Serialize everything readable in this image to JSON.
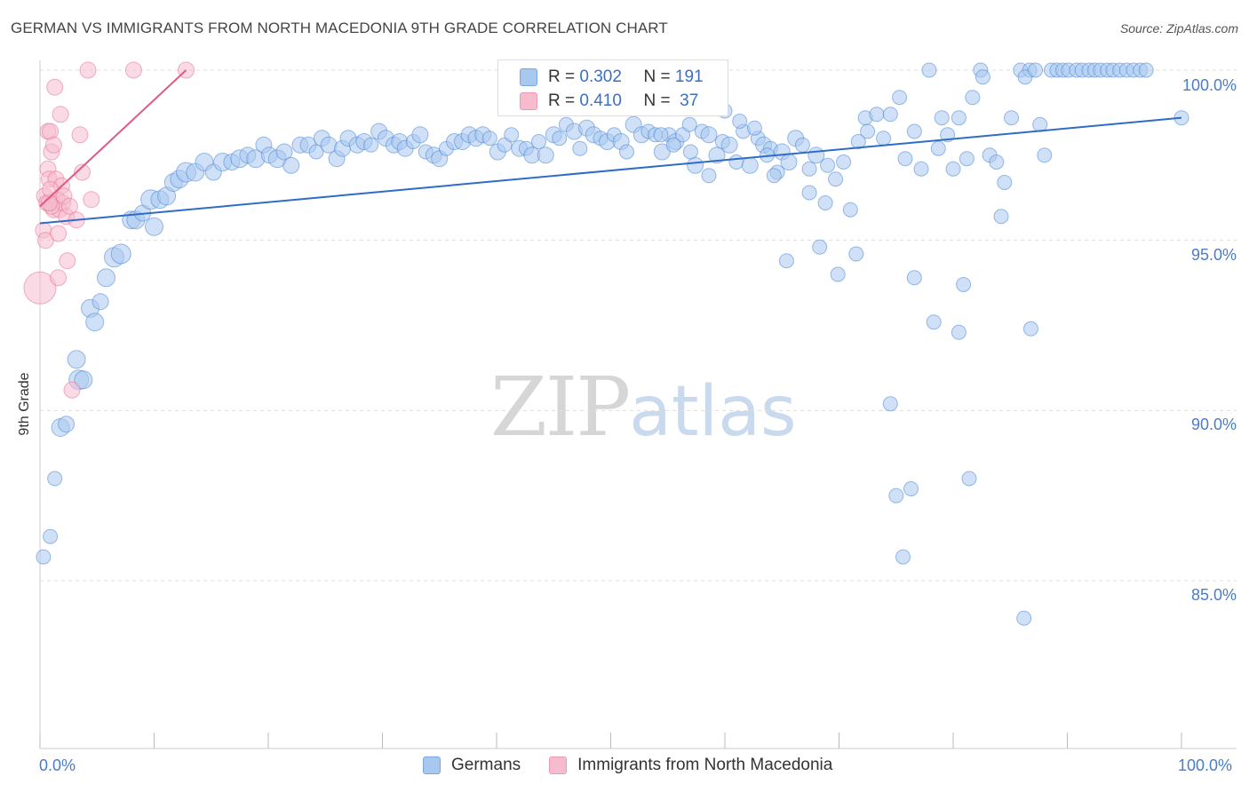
{
  "header": {
    "title": "GERMAN VS IMMIGRANTS FROM NORTH MACEDONIA 9TH GRADE CORRELATION CHART",
    "source": "Source: ZipAtlas.com"
  },
  "watermark": {
    "zip": "ZIP",
    "atlas": "atlas"
  },
  "legend_top": {
    "rows": [
      {
        "r_label": "R =",
        "r_value": "0.302",
        "n_label": "N =",
        "n_value": "191",
        "color": "#a9c8f0"
      },
      {
        "r_label": "R =",
        "r_value": "0.410",
        "n_label": "N =",
        "n_value": "37",
        "color": "#f6bccd"
      }
    ]
  },
  "legend_bottom": {
    "items": [
      {
        "label": "Germans",
        "color": "#a9c8f0"
      },
      {
        "label": "Immigrants from North Macedonia",
        "color": "#f6bccd"
      }
    ]
  },
  "axes": {
    "y_label": "9th Grade",
    "y_ticks": [
      "100.0%",
      "95.0%",
      "90.0%",
      "85.0%"
    ],
    "x_ticks": [
      "0.0%",
      "100.0%"
    ]
  },
  "chart_data": {
    "type": "scatter",
    "title": "GERMAN VS IMMIGRANTS FROM NORTH MACEDONIA 9TH GRADE CORRELATION CHART",
    "xlabel": "",
    "ylabel": "9th Grade",
    "xlim": [
      0,
      100
    ],
    "ylim": [
      80.5,
      100.5
    ],
    "grid": true,
    "legend": "top-center",
    "series": [
      {
        "name": "Germans",
        "color": "#4a86d4",
        "fill": "#a9c8f0",
        "R": 0.302,
        "N": 191,
        "trend": {
          "x": [
            0,
            100
          ],
          "y": [
            95.5,
            98.6
          ]
        },
        "points": [
          [
            0.3,
            85.7,
            8
          ],
          [
            0.9,
            86.3,
            8
          ],
          [
            1.3,
            88,
            8
          ],
          [
            1.8,
            89.5,
            10
          ],
          [
            2.3,
            89.6,
            9
          ],
          [
            3.2,
            91.5,
            10
          ],
          [
            3.4,
            90.9,
            11
          ],
          [
            3.8,
            90.9,
            10
          ],
          [
            4.4,
            93,
            10
          ],
          [
            4.8,
            92.6,
            10
          ],
          [
            5.3,
            93.2,
            9
          ],
          [
            5.8,
            93.9,
            10
          ],
          [
            6.5,
            94.5,
            11
          ],
          [
            7.1,
            94.6,
            11
          ],
          [
            8,
            95.6,
            10
          ],
          [
            8.4,
            95.6,
            10
          ],
          [
            9,
            95.8,
            9
          ],
          [
            9.7,
            96.2,
            11
          ],
          [
            10,
            95.4,
            10
          ],
          [
            10.5,
            96.2,
            10
          ],
          [
            11.1,
            96.3,
            10
          ],
          [
            11.7,
            96.7,
            10
          ],
          [
            12.2,
            96.8,
            10
          ],
          [
            12.8,
            97,
            11
          ],
          [
            13.6,
            97,
            10
          ],
          [
            14.4,
            97.3,
            10
          ],
          [
            15.2,
            97,
            9
          ],
          [
            16,
            97.3,
            10
          ],
          [
            16.8,
            97.3,
            9
          ],
          [
            17.5,
            97.4,
            10
          ],
          [
            18.2,
            97.5,
            9
          ],
          [
            18.9,
            97.4,
            10
          ],
          [
            19.6,
            97.8,
            9
          ],
          [
            20.1,
            97.5,
            9
          ],
          [
            20.8,
            97.4,
            10
          ],
          [
            21.4,
            97.6,
            9
          ],
          [
            22,
            97.2,
            9
          ],
          [
            22.8,
            97.8,
            9
          ],
          [
            23.5,
            97.8,
            9
          ],
          [
            24.2,
            97.6,
            8
          ],
          [
            24.7,
            98,
            9
          ],
          [
            25.3,
            97.8,
            9
          ],
          [
            26,
            97.4,
            9
          ],
          [
            26.5,
            97.7,
            9
          ],
          [
            27,
            98,
            9
          ],
          [
            27.8,
            97.8,
            9
          ],
          [
            28.4,
            97.9,
            9
          ],
          [
            29,
            97.8,
            8
          ],
          [
            29.7,
            98.2,
            9
          ],
          [
            30.3,
            98,
            9
          ],
          [
            31,
            97.8,
            9
          ],
          [
            31.5,
            97.9,
            9
          ],
          [
            32,
            97.7,
            9
          ],
          [
            32.7,
            97.9,
            8
          ],
          [
            33.3,
            98.1,
            9
          ],
          [
            33.8,
            97.6,
            8
          ],
          [
            34.5,
            97.5,
            9
          ],
          [
            35,
            97.4,
            9
          ],
          [
            35.6,
            97.7,
            8
          ],
          [
            36.3,
            97.9,
            9
          ],
          [
            37,
            97.9,
            9
          ],
          [
            37.6,
            98.1,
            9
          ],
          [
            38.2,
            98,
            9
          ],
          [
            38.8,
            98.1,
            9
          ],
          [
            39.4,
            98,
            8
          ],
          [
            40.1,
            97.6,
            9
          ],
          [
            40.7,
            97.8,
            8
          ],
          [
            41.3,
            98.1,
            8
          ],
          [
            42,
            97.7,
            9
          ],
          [
            42.6,
            97.7,
            8
          ],
          [
            43.1,
            97.5,
            9
          ],
          [
            43.7,
            97.9,
            8
          ],
          [
            44.3,
            97.5,
            9
          ],
          [
            45,
            98.1,
            9
          ],
          [
            45.5,
            98,
            8
          ],
          [
            46.1,
            98.4,
            8
          ],
          [
            46.8,
            98.2,
            9
          ],
          [
            47.3,
            97.7,
            8
          ],
          [
            47.9,
            98.3,
            9
          ],
          [
            48.5,
            98.1,
            9
          ],
          [
            49.1,
            98,
            8
          ],
          [
            49.7,
            97.9,
            9
          ],
          [
            50.3,
            98.1,
            8
          ],
          [
            50.9,
            97.9,
            9
          ],
          [
            51.4,
            97.6,
            8
          ],
          [
            52,
            98.4,
            9
          ],
          [
            52.7,
            98.1,
            9
          ],
          [
            53.3,
            98.2,
            8
          ],
          [
            53.9,
            98.1,
            8
          ],
          [
            54.5,
            97.6,
            9
          ],
          [
            55.1,
            98.1,
            8
          ],
          [
            55.7,
            97.9,
            9
          ],
          [
            56.3,
            98.1,
            8
          ],
          [
            56.9,
            98.4,
            8
          ],
          [
            57.4,
            97.2,
            9
          ],
          [
            58,
            98.2,
            8
          ],
          [
            58.6,
            98.1,
            9
          ],
          [
            59.3,
            97.5,
            9
          ],
          [
            59.8,
            97.9,
            8
          ],
          [
            60.4,
            97.8,
            9
          ],
          [
            61,
            97.3,
            8
          ],
          [
            61.6,
            98.2,
            8
          ],
          [
            62.2,
            97.2,
            9
          ],
          [
            62.9,
            98,
            8
          ],
          [
            63.4,
            97.8,
            9
          ],
          [
            64,
            97.7,
            8
          ],
          [
            64.6,
            97,
            8
          ],
          [
            65,
            97.6,
            9
          ],
          [
            65.6,
            97.3,
            9
          ],
          [
            66.2,
            98,
            9
          ],
          [
            66.8,
            97.8,
            8
          ],
          [
            67.4,
            97.1,
            8
          ],
          [
            68,
            97.5,
            9
          ],
          [
            68.8,
            96.1,
            8
          ],
          [
            69,
            97.2,
            8
          ],
          [
            69.7,
            96.8,
            8
          ],
          [
            70.4,
            97.3,
            8
          ],
          [
            71,
            95.9,
            8
          ],
          [
            71.7,
            97.9,
            8
          ],
          [
            72.3,
            98.6,
            8
          ],
          [
            72.5,
            98.2,
            8
          ],
          [
            73.3,
            98.7,
            8
          ],
          [
            73.9,
            98,
            8
          ],
          [
            74.5,
            98.7,
            8
          ],
          [
            75.3,
            99.2,
            8
          ],
          [
            75.8,
            97.4,
            8
          ],
          [
            76.6,
            98.2,
            8
          ],
          [
            77.2,
            97.1,
            8
          ],
          [
            77.9,
            100,
            8
          ],
          [
            78.7,
            97.7,
            8
          ],
          [
            79,
            98.6,
            8
          ],
          [
            79.5,
            98.1,
            8
          ],
          [
            80,
            97.1,
            8
          ],
          [
            80.5,
            98.6,
            8
          ],
          [
            81.2,
            97.4,
            8
          ],
          [
            81.7,
            99.2,
            8
          ],
          [
            82.4,
            100,
            8
          ],
          [
            82.6,
            99.8,
            8
          ],
          [
            83.2,
            97.5,
            8
          ],
          [
            83.8,
            97.3,
            8
          ],
          [
            84.2,
            95.7,
            8
          ],
          [
            84.5,
            96.7,
            8
          ],
          [
            85.1,
            98.6,
            8
          ],
          [
            85.9,
            100,
            8
          ],
          [
            86.7,
            100,
            8
          ],
          [
            86.3,
            99.8,
            8
          ],
          [
            87.2,
            100,
            8
          ],
          [
            87.6,
            98.4,
            8
          ],
          [
            88,
            97.5,
            8
          ],
          [
            88.6,
            100,
            8
          ],
          [
            89.1,
            100,
            8
          ],
          [
            89.6,
            100,
            8
          ],
          [
            90.1,
            100,
            8
          ],
          [
            90.8,
            100,
            8
          ],
          [
            91.3,
            100,
            8
          ],
          [
            91.9,
            100,
            8
          ],
          [
            92.4,
            100,
            8
          ],
          [
            92.9,
            100,
            8
          ],
          [
            93.5,
            100,
            8
          ],
          [
            94,
            100,
            8
          ],
          [
            94.6,
            100,
            8
          ],
          [
            95.2,
            100,
            8
          ],
          [
            95.8,
            100,
            8
          ],
          [
            96.4,
            100,
            8
          ],
          [
            96.9,
            100,
            8
          ],
          [
            100,
            98.6,
            8
          ],
          [
            65.4,
            94.4,
            8
          ],
          [
            68.3,
            94.8,
            8
          ],
          [
            69.9,
            94,
            8
          ],
          [
            71.5,
            94.6,
            8
          ],
          [
            74.5,
            90.2,
            8
          ],
          [
            75,
            87.5,
            8
          ],
          [
            75.6,
            85.7,
            8
          ],
          [
            76.3,
            87.7,
            8
          ],
          [
            76.6,
            93.9,
            8
          ],
          [
            78.3,
            92.6,
            8
          ],
          [
            80.5,
            92.3,
            8
          ],
          [
            80.9,
            93.7,
            8
          ],
          [
            81.4,
            88,
            8
          ],
          [
            86.2,
            83.9,
            8
          ],
          [
            86.8,
            92.4,
            8
          ],
          [
            67.4,
            96.4,
            8
          ],
          [
            64.3,
            96.9,
            8
          ],
          [
            63.7,
            97.5,
            8
          ],
          [
            58.6,
            96.9,
            8
          ],
          [
            57,
            97.6,
            8
          ],
          [
            55.5,
            97.8,
            8
          ],
          [
            54.4,
            98.1,
            8
          ],
          [
            62.6,
            98.3,
            8
          ],
          [
            61.3,
            98.5,
            8
          ],
          [
            60,
            98.8,
            8
          ]
        ]
      },
      {
        "name": "Immigrants from North Macedonia",
        "color": "#e7728f",
        "fill": "#f6bccd",
        "R": 0.41,
        "N": 37,
        "trend": {
          "x": [
            0,
            12.8
          ],
          "y": [
            96,
            100
          ]
        },
        "points": [
          [
            0,
            93.6,
            18
          ],
          [
            0.3,
            95.3,
            9
          ],
          [
            0.4,
            96.3,
            9
          ],
          [
            0.5,
            95,
            9
          ],
          [
            0.6,
            96.1,
            9
          ],
          [
            0.7,
            98.2,
            9
          ],
          [
            0.7,
            97.1,
            9
          ],
          [
            0.8,
            96.8,
            9
          ],
          [
            0.9,
            98.2,
            9
          ],
          [
            1,
            97.6,
            9
          ],
          [
            1.1,
            96.1,
            9
          ],
          [
            1.2,
            95.9,
            9
          ],
          [
            1.3,
            99.5,
            9
          ],
          [
            1.4,
            96.8,
            9
          ],
          [
            1.5,
            96.2,
            9
          ],
          [
            1.6,
            93.9,
            9
          ],
          [
            1.6,
            95.2,
            9
          ],
          [
            1.7,
            95.9,
            9
          ],
          [
            1.8,
            98.7,
            9
          ],
          [
            1.9,
            96.6,
            9
          ],
          [
            2,
            96.1,
            9
          ],
          [
            2.1,
            96.3,
            9
          ],
          [
            2.3,
            95.7,
            9
          ],
          [
            2.6,
            96,
            9
          ],
          [
            2.4,
            94.4,
            9
          ],
          [
            2.8,
            90.6,
            9
          ],
          [
            3.2,
            95.6,
            9
          ],
          [
            3.5,
            98.1,
            9
          ],
          [
            3.7,
            97,
            9
          ],
          [
            4.5,
            96.2,
            9
          ],
          [
            4.2,
            100,
            9
          ],
          [
            8.2,
            100,
            9
          ],
          [
            12.8,
            100,
            9
          ],
          [
            1.0,
            96.0,
            9
          ],
          [
            0.8,
            96.1,
            9
          ],
          [
            1.2,
            97.8,
            9
          ],
          [
            0.9,
            96.5,
            9
          ]
        ]
      }
    ]
  }
}
